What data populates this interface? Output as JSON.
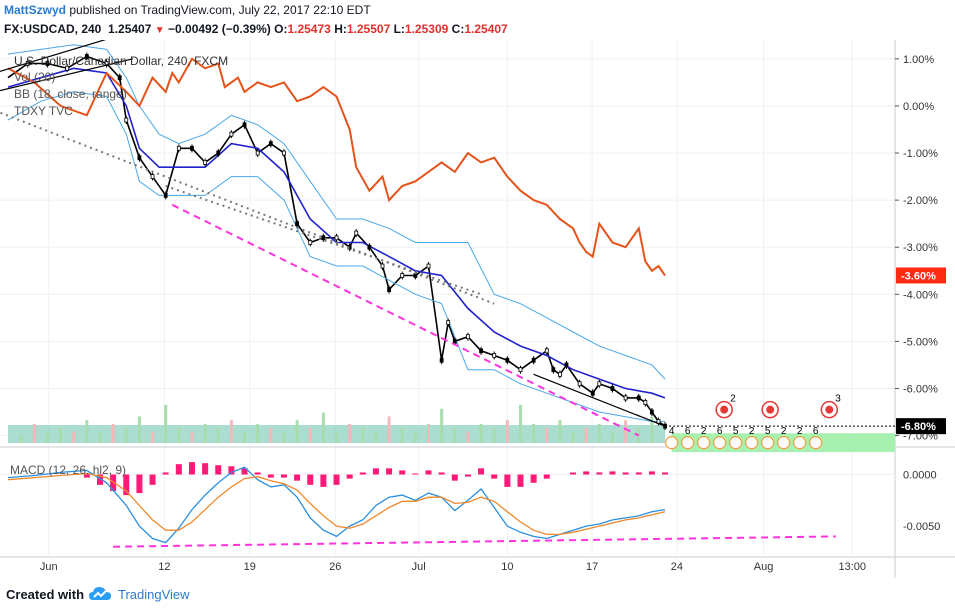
{
  "header": {
    "author": "MattSzwyd",
    "published": "published on TradingView.com, July 22, 2017 22:10 EDT",
    "symbol": "FX:USDCAD, 240",
    "last": "1.25407",
    "change": "−0.00492 (−0.39%)",
    "o_label": "O:",
    "o_value": "1.25473",
    "h_label": "H:",
    "h_value": "1.25507",
    "l_label": "L:",
    "l_value": "1.25309",
    "c_label": "C:",
    "c_value": "1.25407"
  },
  "legend": {
    "main": "U.S. Dollar/Canadian Dollar, 240, FXCM",
    "vol": "Vol (20)",
    "bb": "BB (18, close, range)",
    "compare": "TDXY TVC"
  },
  "footer": {
    "created_with": "Created with",
    "brand": "TradingView"
  },
  "colors": {
    "price": "#000000",
    "bb_basis": "#2222cc",
    "bb_band": "#4aa8e8",
    "compare": "#e5531a",
    "trend_magenta": "#ff33dd",
    "trend_dotted": "#777777",
    "macd_line": "#2a8fe0",
    "signal_line": "#f0882b",
    "hist_neg": "#ff1a77",
    "vol_up": "#a8dcae",
    "vol_down": "#f2b8bc",
    "axis_label_bg": "#ff2a12",
    "cal_red": "#e53935",
    "shade_green": "#a8f0b0"
  },
  "chart_data": [
    {
      "type": "line",
      "title": "U.S. Dollar/Canadian Dollar, 240, FXCM",
      "y_axis_unit": "percent",
      "y_ticks": [
        "1.00%",
        "0.00%",
        "-1.00%",
        "-2.00%",
        "-3.00%",
        "-4.00%",
        "-5.00%",
        "-6.00%",
        "-7.00%"
      ],
      "ylim": [
        -7.2,
        1.4
      ],
      "x_ticks": [
        "Jun",
        "12",
        "19",
        "26",
        "Jul",
        "10",
        "17",
        "24",
        "Aug",
        "13:00"
      ],
      "last_labels": {
        "price": "-6.80%",
        "compare": "-3.60%"
      },
      "series": [
        {
          "name": "U.S. Dollar/Canadian Dollar",
          "x": [
            0,
            3,
            6,
            9,
            12,
            15,
            17,
            18,
            20,
            22,
            24,
            26,
            28,
            30,
            32,
            34,
            36,
            38,
            40,
            42,
            44,
            46,
            48,
            50,
            52,
            53,
            55,
            57,
            58,
            60,
            62,
            64,
            66,
            67,
            68,
            70,
            72,
            74,
            76,
            78,
            80,
            82,
            83,
            84,
            85,
            87,
            89,
            90,
            92,
            94,
            96,
            97,
            98,
            99,
            100
          ],
          "values": [
            0.6,
            0.9,
            0.9,
            0.8,
            1.05,
            0.9,
            0.6,
            -0.3,
            -1.1,
            -1.5,
            -1.9,
            -0.9,
            -0.9,
            -1.2,
            -1.0,
            -0.6,
            -0.4,
            -1.0,
            -0.8,
            -1.0,
            -2.5,
            -2.9,
            -2.8,
            -2.8,
            -3.0,
            -2.7,
            -3.0,
            -3.4,
            -3.9,
            -3.6,
            -3.6,
            -3.4,
            -5.4,
            -4.6,
            -5.0,
            -4.9,
            -5.2,
            -5.3,
            -5.4,
            -5.6,
            -5.4,
            -5.2,
            -5.6,
            -5.7,
            -5.5,
            -5.9,
            -6.1,
            -5.9,
            -6.0,
            -6.2,
            -6.2,
            -6.3,
            -6.5,
            -6.7,
            -6.8
          ]
        },
        {
          "name": "BB basis",
          "x": [
            0,
            5,
            10,
            15,
            18,
            20,
            23,
            26,
            30,
            34,
            38,
            42,
            46,
            50,
            54,
            58,
            62,
            66,
            70,
            74,
            78,
            82,
            86,
            90,
            94,
            98,
            100
          ],
          "values": [
            0.4,
            0.6,
            0.8,
            0.7,
            0.0,
            -0.9,
            -1.3,
            -1.3,
            -1.3,
            -0.8,
            -0.9,
            -1.4,
            -2.4,
            -2.9,
            -2.9,
            -3.2,
            -3.5,
            -3.6,
            -4.3,
            -4.8,
            -5.1,
            -5.3,
            -5.6,
            -5.8,
            -6.0,
            -6.1,
            -6.2
          ]
        },
        {
          "name": "BB upper",
          "x": [
            0,
            5,
            10,
            15,
            18,
            20,
            23,
            26,
            30,
            34,
            38,
            42,
            46,
            50,
            54,
            58,
            62,
            66,
            70,
            74,
            78,
            82,
            86,
            90,
            94,
            98,
            100
          ],
          "values": [
            1.1,
            1.2,
            1.3,
            1.2,
            0.6,
            0.0,
            -0.6,
            -0.8,
            -0.6,
            -0.2,
            -0.4,
            -0.8,
            -1.6,
            -2.4,
            -2.4,
            -2.6,
            -2.9,
            -2.9,
            -2.9,
            -4.0,
            -4.2,
            -4.5,
            -4.8,
            -5.1,
            -5.3,
            -5.5,
            -5.8
          ]
        },
        {
          "name": "BB lower",
          "x": [
            0,
            5,
            10,
            15,
            18,
            20,
            23,
            26,
            30,
            34,
            38,
            42,
            46,
            50,
            54,
            58,
            62,
            66,
            70,
            74,
            78,
            82,
            86,
            90,
            94,
            98,
            100
          ],
          "values": [
            -0.3,
            0.1,
            0.3,
            0.2,
            -0.6,
            -1.6,
            -1.9,
            -1.9,
            -1.9,
            -1.5,
            -1.5,
            -2.0,
            -3.2,
            -3.4,
            -3.4,
            -3.7,
            -4.0,
            -4.2,
            -5.6,
            -5.6,
            -5.9,
            -6.1,
            -6.3,
            -6.5,
            -6.6,
            -6.7,
            -6.7
          ]
        },
        {
          "name": "TDXY TVC",
          "x": [
            0,
            4,
            8,
            12,
            15,
            18,
            20,
            22,
            24,
            25,
            26,
            28,
            30,
            32,
            33,
            35,
            36,
            38,
            40,
            42,
            44,
            46,
            48,
            50,
            52,
            53,
            55,
            57,
            58,
            60,
            62,
            64,
            66,
            68,
            70,
            72,
            74,
            76,
            78,
            80,
            82,
            84,
            86,
            87,
            88,
            89,
            90,
            92,
            94,
            95,
            96,
            97,
            98,
            99,
            100
          ],
          "values": [
            0.8,
            0.5,
            0.0,
            -0.2,
            0.7,
            0.3,
            0.0,
            0.6,
            0.3,
            0.7,
            0.5,
            1.0,
            0.8,
            0.9,
            0.4,
            0.6,
            0.3,
            0.5,
            0.4,
            0.5,
            0.1,
            0.2,
            0.4,
            0.2,
            -0.5,
            -1.3,
            -1.8,
            -1.5,
            -2.0,
            -1.7,
            -1.6,
            -1.4,
            -1.2,
            -1.4,
            -1.0,
            -1.2,
            -1.1,
            -1.5,
            -1.8,
            -2.0,
            -2.1,
            -2.4,
            -2.6,
            -2.9,
            -3.1,
            -3.2,
            -2.5,
            -2.9,
            -3.0,
            -2.8,
            -2.6,
            -3.3,
            -3.5,
            -3.4,
            -3.6
          ]
        }
      ],
      "trendlines": [
        {
          "style": "dotted",
          "x": [
            -2,
            74
          ],
          "values": [
            -0.1,
            -4.2
          ]
        },
        {
          "style": "dashed-magenta",
          "x": [
            25,
            96
          ],
          "values": [
            -2.1,
            -7.0
          ]
        },
        {
          "style": "solid",
          "x": [
            80,
            100
          ],
          "values": [
            -5.7,
            -6.8
          ]
        },
        {
          "style": "solid",
          "x": [
            -2,
            17
          ],
          "values": [
            0.7,
            1.5
          ]
        },
        {
          "style": "solid",
          "x": [
            -2,
            19
          ],
          "values": [
            0.3,
            1.0
          ]
        }
      ]
    },
    {
      "type": "bar",
      "title": "Vol (20)",
      "x": [
        2,
        4,
        6,
        8,
        10,
        12,
        14,
        16,
        18,
        20,
        22,
        24,
        26,
        28,
        30,
        32,
        34,
        36,
        38,
        40,
        42,
        44,
        46,
        48,
        50,
        52,
        54,
        56,
        58,
        60,
        62,
        64,
        66,
        68,
        70,
        72,
        74,
        76,
        78,
        80,
        82,
        84,
        86,
        88,
        90,
        92,
        94,
        96,
        98
      ],
      "values": [
        0.2,
        0.5,
        0.3,
        0.4,
        0.3,
        0.6,
        0.3,
        0.5,
        0.4,
        0.7,
        0.3,
        1.0,
        0.4,
        0.3,
        0.5,
        0.4,
        0.6,
        0.3,
        0.5,
        0.4,
        0.3,
        0.6,
        0.4,
        0.8,
        0.3,
        0.5,
        0.4,
        0.3,
        0.7,
        0.4,
        0.3,
        0.5,
        0.9,
        0.4,
        0.3,
        0.5,
        0.4,
        0.6,
        1.0,
        0.5,
        0.4,
        0.6,
        0.3,
        0.4,
        0.5,
        0.3,
        0.6,
        0.4,
        0.7
      ]
    },
    {
      "type": "line",
      "title": "MACD (12, 26, hl2, 9)",
      "y_ticks": [
        "0.0000",
        "-0.0050"
      ],
      "ylim": [
        -0.0078,
        0.0016
      ],
      "series": [
        {
          "name": "MACD",
          "x": [
            0,
            4,
            8,
            12,
            15,
            18,
            20,
            22,
            24,
            26,
            28,
            30,
            32,
            34,
            36,
            38,
            40,
            42,
            44,
            46,
            48,
            50,
            52,
            54,
            56,
            58,
            60,
            62,
            64,
            66,
            68,
            70,
            72,
            74,
            76,
            78,
            80,
            82,
            84,
            86,
            88,
            90,
            92,
            94,
            96,
            98,
            100
          ],
          "values": [
            -0.0003,
            -0.0001,
            0.0002,
            0.0004,
            -0.0008,
            -0.003,
            -0.005,
            -0.0062,
            -0.0066,
            -0.0052,
            -0.0034,
            -0.002,
            -0.0008,
            0.0002,
            0.0007,
            -0.0005,
            -0.0012,
            -0.001,
            -0.0022,
            -0.0042,
            -0.0054,
            -0.006,
            -0.005,
            -0.0044,
            -0.003,
            -0.0022,
            -0.002,
            -0.0025,
            -0.0018,
            -0.0022,
            -0.0035,
            -0.0025,
            -0.0014,
            -0.0032,
            -0.005,
            -0.0056,
            -0.006,
            -0.0062,
            -0.0058,
            -0.0054,
            -0.005,
            -0.0048,
            -0.0044,
            -0.0042,
            -0.004,
            -0.0036,
            -0.0034
          ]
        },
        {
          "name": "Signal",
          "x": [
            0,
            4,
            8,
            12,
            15,
            18,
            20,
            22,
            24,
            26,
            28,
            30,
            32,
            34,
            36,
            38,
            40,
            42,
            44,
            46,
            48,
            50,
            52,
            54,
            56,
            58,
            60,
            62,
            64,
            66,
            68,
            70,
            72,
            74,
            76,
            78,
            80,
            82,
            84,
            86,
            88,
            90,
            92,
            94,
            96,
            98,
            100
          ],
          "values": [
            -0.0005,
            -0.0003,
            -0.0001,
            0.0001,
            -0.0003,
            -0.0016,
            -0.003,
            -0.0044,
            -0.0054,
            -0.0054,
            -0.0046,
            -0.0034,
            -0.0022,
            -0.0012,
            -0.0004,
            -0.0002,
            -0.0006,
            -0.0009,
            -0.0015,
            -0.0028,
            -0.004,
            -0.005,
            -0.0052,
            -0.0048,
            -0.004,
            -0.0032,
            -0.0026,
            -0.0026,
            -0.0022,
            -0.0022,
            -0.0028,
            -0.0027,
            -0.0022,
            -0.0026,
            -0.0036,
            -0.0046,
            -0.0054,
            -0.0058,
            -0.0058,
            -0.0056,
            -0.0053,
            -0.005,
            -0.0047,
            -0.0044,
            -0.0042,
            -0.0039,
            -0.0036
          ]
        },
        {
          "name": "Histogram",
          "x": [
            12,
            14,
            16,
            18,
            20,
            22,
            24,
            26,
            28,
            30,
            32,
            34,
            36,
            38,
            40,
            42,
            44,
            46,
            48,
            50,
            52,
            54,
            56,
            58,
            60,
            62,
            64,
            66,
            68,
            70,
            72,
            74,
            76,
            78,
            80,
            82,
            84,
            86,
            88,
            90,
            92,
            94,
            96,
            98,
            100
          ],
          "values": [
            -0.0003,
            -0.001,
            -0.0016,
            -0.002,
            -0.0018,
            -0.001,
            0.0002,
            0.001,
            0.0012,
            0.0011,
            0.0009,
            0.0008,
            0.0006,
            0.0002,
            -0.0003,
            -0.0003,
            -0.0006,
            -0.001,
            -0.0012,
            -0.001,
            -0.0004,
            0.0002,
            0.0006,
            0.0006,
            0.0004,
            0.0001,
            0.0004,
            0.0002,
            -0.0006,
            -0.0002,
            0.0006,
            -0.0004,
            -0.0012,
            -0.0012,
            -0.0008,
            -0.0004,
            0.0,
            0.0002,
            0.0003,
            0.0002,
            0.0003,
            0.0002,
            0.0002,
            0.0003,
            0.0002
          ]
        }
      ],
      "trendlines": [
        {
          "style": "dashed-magenta",
          "x": [
            16,
            126
          ],
          "values": [
            -0.007,
            -0.006
          ]
        }
      ]
    }
  ],
  "events": {
    "numbers": [
      "4",
      "6",
      "2",
      "6",
      "5",
      "2",
      "5",
      "2",
      "2",
      "6"
    ],
    "flag_badges": [
      "2",
      "3"
    ]
  }
}
